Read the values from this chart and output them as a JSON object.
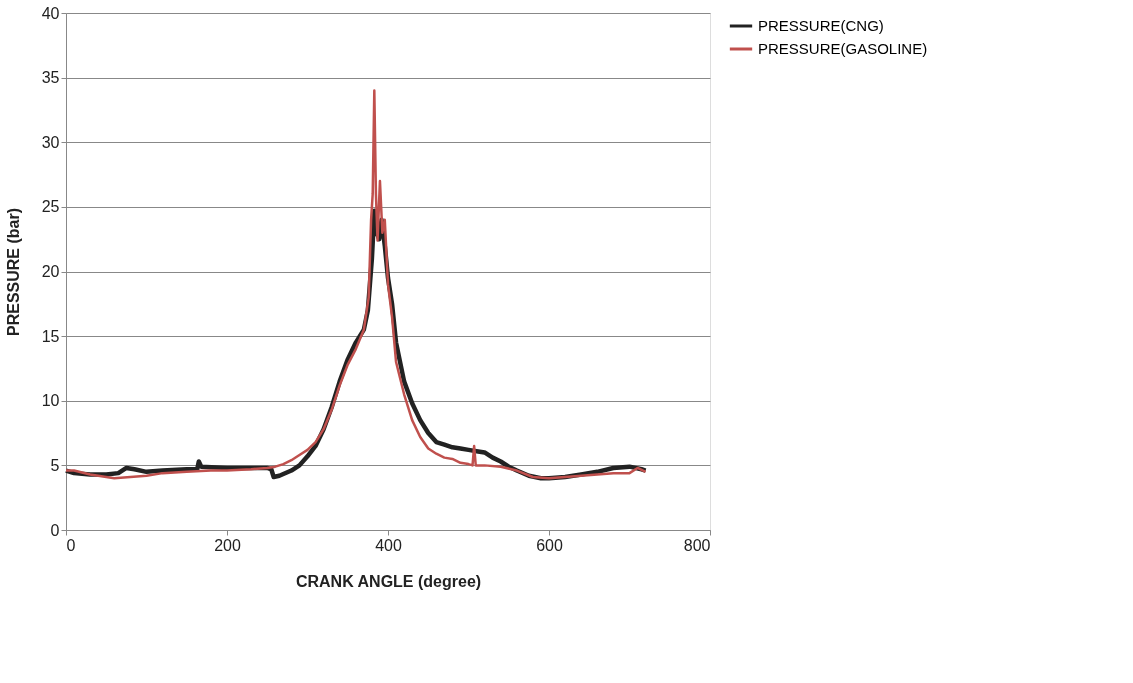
{
  "chart_data": {
    "type": "line",
    "xlabel": "CRANK ANGLE (degree)",
    "ylabel": "PRESSURE (bar)",
    "xlim": [
      0,
      800
    ],
    "ylim": [
      0,
      40
    ],
    "xticks": [
      0,
      200,
      400,
      600,
      800
    ],
    "yticks": [
      0,
      5,
      10,
      15,
      20,
      25,
      30,
      35,
      40
    ],
    "grid": "y",
    "legend": "right",
    "marker": "none",
    "line_style": "solid",
    "series": [
      {
        "name": "PRESSURE(CNG)",
        "color": "#222222",
        "x": [
          0,
          10,
          30,
          50,
          65,
          75,
          85,
          100,
          120,
          150,
          163,
          165,
          168,
          200,
          230,
          250,
          255,
          258,
          265,
          280,
          290,
          300,
          310,
          320,
          330,
          340,
          350,
          360,
          370,
          375,
          380,
          383,
          386,
          389,
          392,
          396,
          400,
          405,
          410,
          420,
          430,
          440,
          450,
          460,
          470,
          480,
          490,
          500,
          510,
          520,
          530,
          540,
          550,
          560,
          575,
          590,
          600,
          620,
          640,
          660,
          680,
          700,
          715,
          720
        ],
        "values": [
          4.6,
          4.4,
          4.3,
          4.3,
          4.4,
          4.8,
          4.7,
          4.5,
          4.6,
          4.7,
          4.7,
          5.3,
          4.9,
          4.8,
          4.8,
          4.8,
          4.7,
          4.1,
          4.2,
          4.6,
          5.0,
          5.7,
          6.5,
          7.8,
          9.5,
          11.5,
          13.2,
          14.5,
          15.5,
          17,
          21,
          24.7,
          23,
          22.5,
          24,
          22,
          19.5,
          17.5,
          14.5,
          11.5,
          9.8,
          8.5,
          7.5,
          6.8,
          6.6,
          6.4,
          6.3,
          6.2,
          6.1,
          6.0,
          5.6,
          5.3,
          4.9,
          4.6,
          4.2,
          4.0,
          4.0,
          4.1,
          4.3,
          4.5,
          4.8,
          4.9,
          4.7,
          4.6
        ]
      },
      {
        "name": "PRESSURE(GASOLINE)",
        "color": "#c0504d",
        "x": [
          0,
          10,
          30,
          50,
          60,
          80,
          100,
          120,
          150,
          180,
          200,
          230,
          250,
          260,
          270,
          280,
          290,
          300,
          310,
          320,
          330,
          340,
          350,
          360,
          370,
          376,
          379,
          381,
          383,
          385,
          387,
          390,
          393,
          396,
          400,
          405,
          410,
          420,
          430,
          440,
          450,
          460,
          470,
          480,
          490,
          500,
          505,
          507,
          509,
          520,
          540,
          560,
          580,
          600,
          620,
          640,
          660,
          680,
          700,
          710,
          720
        ],
        "values": [
          4.6,
          4.6,
          4.3,
          4.1,
          4.0,
          4.1,
          4.2,
          4.4,
          4.5,
          4.6,
          4.6,
          4.7,
          4.8,
          4.9,
          5.1,
          5.4,
          5.8,
          6.2,
          6.8,
          7.8,
          9.3,
          11.2,
          12.8,
          14.0,
          15.5,
          18,
          24,
          26,
          34,
          26,
          22.4,
          27,
          23,
          24,
          19,
          16.5,
          13,
          10.5,
          8.5,
          7.2,
          6.3,
          5.9,
          5.6,
          5.5,
          5.2,
          5.1,
          5.0,
          6.5,
          5.0,
          5.0,
          4.9,
          4.6,
          4.1,
          4.0,
          4.1,
          4.2,
          4.3,
          4.4,
          4.4,
          4.8,
          4.5
        ]
      }
    ]
  }
}
